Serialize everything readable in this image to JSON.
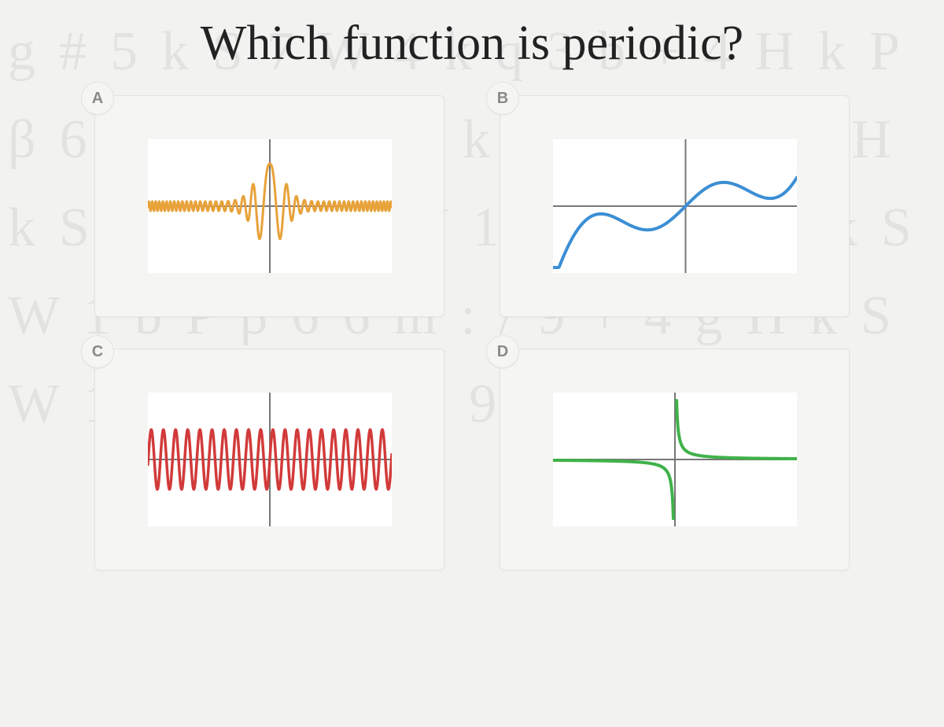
{
  "question_text": "Which function is periodic?",
  "background_glyphs": "g#5kS7W4kq3b+4HkPβ66m:/9SkkSW4+4gHkSW1bkSW1b9g#kqkSW1bPβ66m:/9+4gHkSW1bkSW1b9",
  "axis_color": "#777777",
  "axis_width": 2,
  "options": [
    {
      "id": "A",
      "label": "A",
      "curve_type": "chirp",
      "stroke": "#e8a23a",
      "stroke_width": 3,
      "xrange": [
        -10,
        10
      ],
      "samples": 900,
      "envelope_base": 6,
      "envelope_peak": 54,
      "envelope_sigma": 1.1,
      "freq_center": 1.4,
      "freq_edge": 14.0,
      "freq_shape": 0.7
    },
    {
      "id": "B",
      "label": "B",
      "curve_type": "cubic_sine",
      "stroke": "#3b8fd4",
      "stroke_width": 4,
      "xrange": [
        -5,
        4.2
      ],
      "samples": 400,
      "cubic_scale": 0.85,
      "sine_amp": 28,
      "sine_freq": 1.2,
      "yclip": 78
    },
    {
      "id": "C",
      "label": "C",
      "curve_type": "periodic_sine",
      "stroke": "#d23a3a",
      "stroke_width": 3.5,
      "xrange": [
        -10,
        10
      ],
      "samples": 700,
      "amp": 38,
      "freq": 6.3
    },
    {
      "id": "D",
      "label": "D",
      "curve_type": "reciprocal",
      "stroke": "#3fb24a",
      "stroke_width": 4,
      "xrange": [
        -10,
        10
      ],
      "samples": 600,
      "k": 10,
      "yclip": 80,
      "gap": 0.12
    }
  ]
}
